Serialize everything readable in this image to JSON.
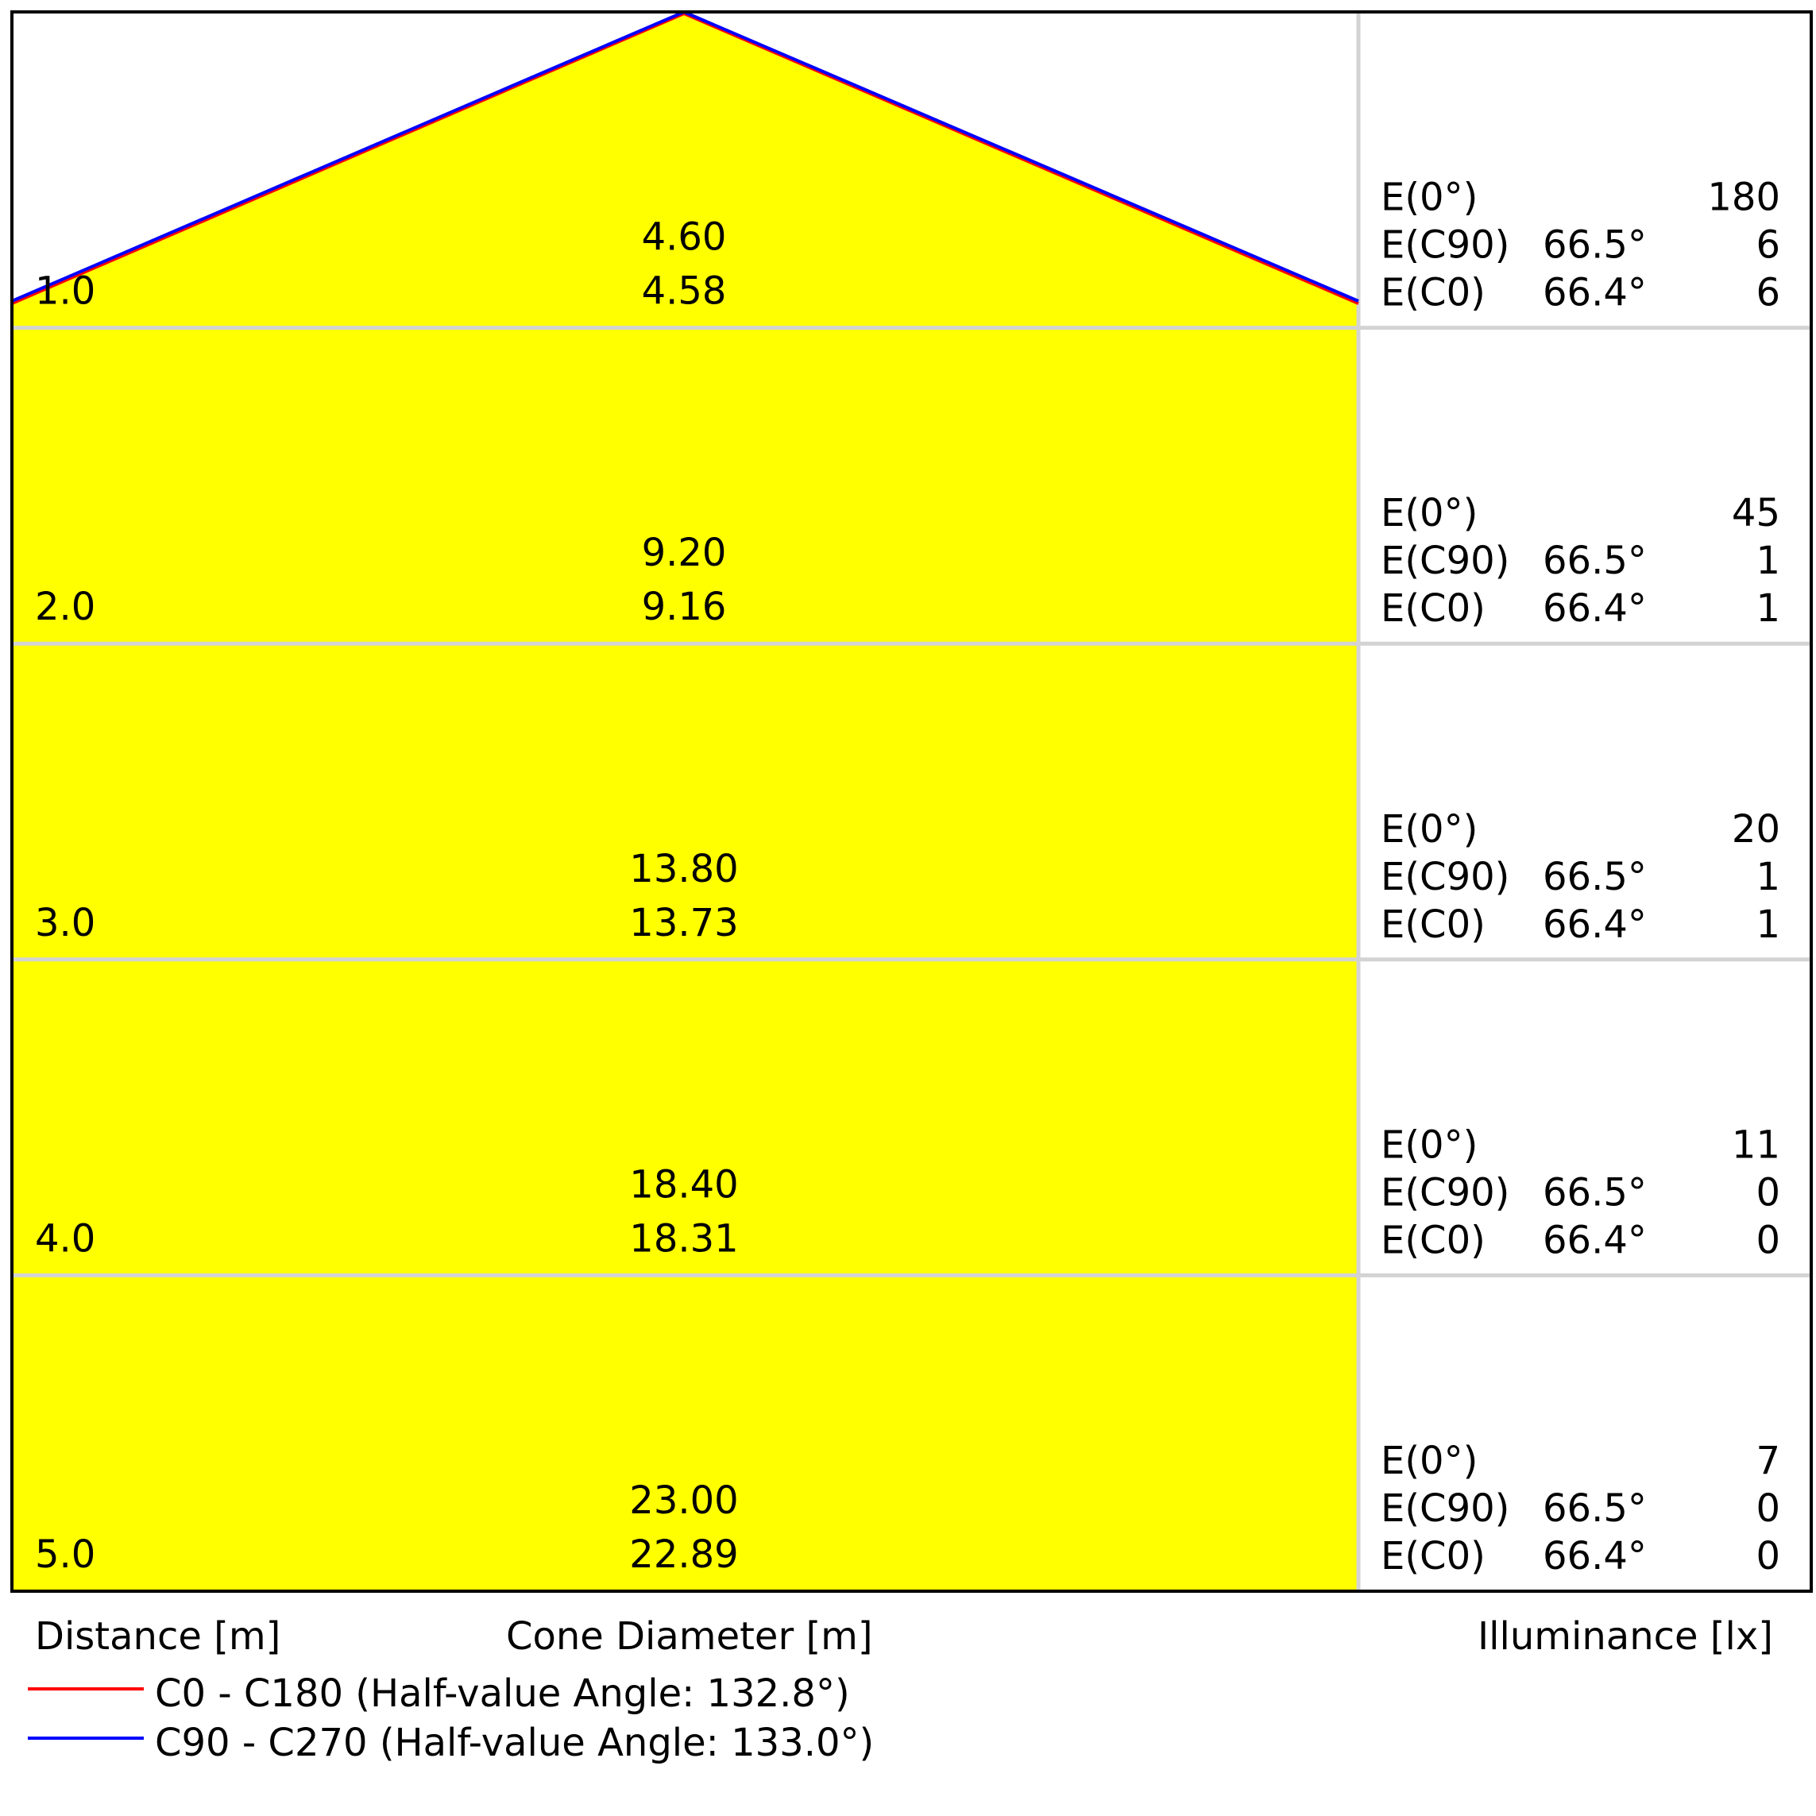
{
  "colors": {
    "fill": "#ffff00",
    "c0_line": "#ff0000",
    "c90_line": "#0000ff",
    "grid": "#d3d3d3",
    "frame": "#000000"
  },
  "rows": [
    {
      "distance": "1.0",
      "diameter_c0": "4.60",
      "diameter_c90": "4.58",
      "e0": "180",
      "ec90_angle": "66.5°",
      "ec90": "6",
      "ec0_angle": "66.4°",
      "ec0": "6"
    },
    {
      "distance": "2.0",
      "diameter_c0": "9.20",
      "diameter_c90": "9.16",
      "e0": "45",
      "ec90_angle": "66.5°",
      "ec90": "1",
      "ec0_angle": "66.4°",
      "ec0": "1"
    },
    {
      "distance": "3.0",
      "diameter_c0": "13.80",
      "diameter_c90": "13.73",
      "e0": "20",
      "ec90_angle": "66.5°",
      "ec90": "1",
      "ec0_angle": "66.4°",
      "ec0": "1"
    },
    {
      "distance": "4.0",
      "diameter_c0": "18.40",
      "diameter_c90": "18.31",
      "e0": "11",
      "ec90_angle": "66.5°",
      "ec90": "0",
      "ec0_angle": "66.4°",
      "ec0": "0"
    },
    {
      "distance": "5.0",
      "diameter_c0": "23.00",
      "diameter_c90": "22.89",
      "e0": "7",
      "ec90_angle": "66.5°",
      "ec90": "0",
      "ec0_angle": "66.4°",
      "ec0": "0"
    }
  ],
  "labels": {
    "e0": "E(0°)",
    "ec90": "E(C90)",
    "ec0": "E(C0)"
  },
  "axis": {
    "distance": "Distance [m]",
    "diameter": "Cone Diameter [m]",
    "illuminance": "Illuminance [lx]"
  },
  "legend": [
    {
      "label": "C0 - C180 (Half-value Angle: 132.8°)",
      "color": "#ff0000",
      "half_angle": 132.8
    },
    {
      "label": "C90 - C270 (Half-value Angle: 133.0°)",
      "color": "#0000ff",
      "half_angle": 133.0
    }
  ]
}
